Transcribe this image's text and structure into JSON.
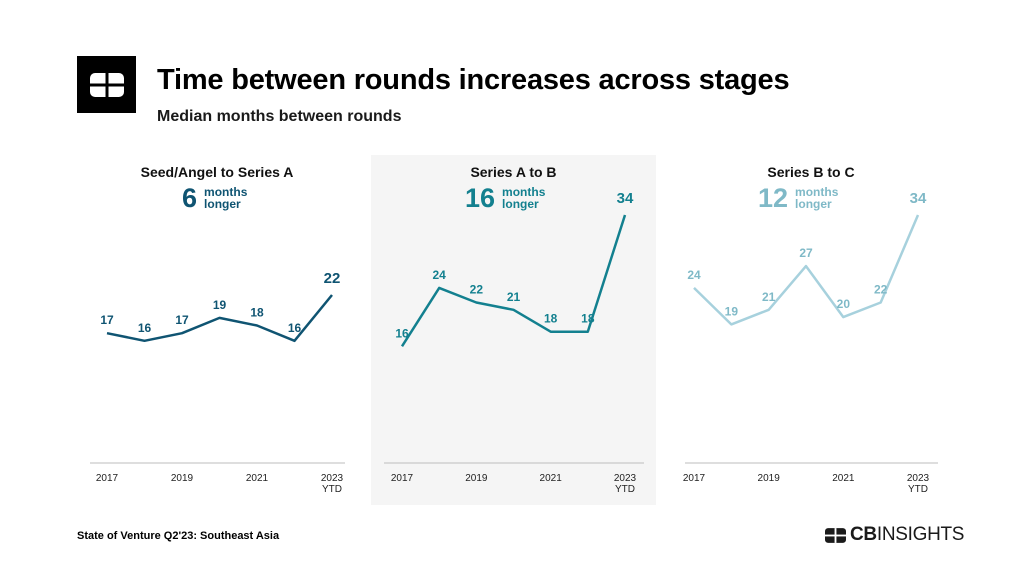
{
  "header": {
    "logo_icon": "cb-insights-logo-icon",
    "title": "Time between rounds increases across stages",
    "subtitle": "Median months between rounds"
  },
  "panels": [
    {
      "title": "Seed/Angel to Series A",
      "stat_value": "6",
      "stat_line1": "months",
      "stat_line2": "longer",
      "color": "#0f5472",
      "shaded": false
    },
    {
      "title": "Series A to B",
      "stat_value": "16",
      "stat_line1": "months",
      "stat_line2": "longer",
      "color": "#13808f",
      "shaded": true
    },
    {
      "title": "Series B to C",
      "stat_value": "12",
      "stat_line1": "months",
      "stat_line2": "longer",
      "color": "#7fb9c7",
      "shaded": false
    }
  ],
  "chart_data": [
    {
      "type": "line",
      "title": "Seed/Angel to Series A",
      "x": [
        "2017",
        "2018",
        "2019",
        "2020",
        "2021",
        "2022",
        "2023 YTD"
      ],
      "tick_labels": [
        "2017",
        "",
        "2019",
        "",
        "2021",
        "",
        "2023\nYTD"
      ],
      "series": [
        {
          "values": [
            17,
            16,
            17,
            19,
            18,
            16,
            22
          ]
        }
      ],
      "ylabel": "",
      "xlabel": "",
      "grid": false,
      "color": "#0f5472"
    },
    {
      "type": "line",
      "title": "Series A to B",
      "x": [
        "2017",
        "2018",
        "2019",
        "2020",
        "2021",
        "2022",
        "2023 YTD"
      ],
      "tick_labels": [
        "2017",
        "",
        "2019",
        "",
        "2021",
        "",
        "2023\nYTD"
      ],
      "series": [
        {
          "values": [
            16,
            24,
            22,
            21,
            18,
            18,
            34
          ]
        }
      ],
      "ylabel": "",
      "xlabel": "",
      "grid": false,
      "color": "#13808f"
    },
    {
      "type": "line",
      "title": "Series B to C",
      "x": [
        "2017",
        "2018",
        "2019",
        "2020",
        "2021",
        "2022",
        "2023 YTD"
      ],
      "tick_labels": [
        "2017",
        "",
        "2019",
        "",
        "2021",
        "",
        "2023\nYTD"
      ],
      "series": [
        {
          "values": [
            24,
            19,
            21,
            27,
            20,
            22,
            34
          ]
        }
      ],
      "ylabel": "",
      "xlabel": "",
      "grid": false,
      "color": "#a7d1dd"
    }
  ],
  "footer": {
    "source": "State of Venture Q2'23: Southeast Asia",
    "brand_bold": "CB",
    "brand_thin": "INSIGHTS",
    "brand_icon": "cb-insights-logo-icon"
  }
}
